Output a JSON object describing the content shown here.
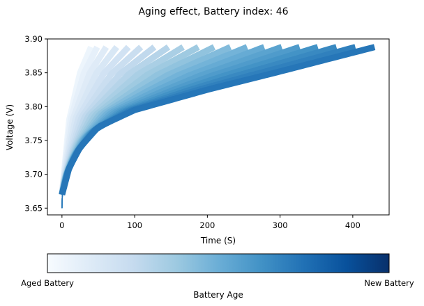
{
  "chart_data": {
    "type": "line",
    "title": "Aging effect, Battery index: 46",
    "xlabel": "Time (S)",
    "ylabel": "Voltage (V)",
    "xlim": [
      -20,
      450
    ],
    "ylim": [
      3.64,
      3.9
    ],
    "xticks": [
      0,
      100,
      200,
      300,
      400
    ],
    "yticks": [
      3.65,
      3.7,
      3.75,
      3.8,
      3.85,
      3.9
    ],
    "xtick_labels": [
      "0",
      "100",
      "200",
      "300",
      "400"
    ],
    "ytick_labels": [
      "3.65",
      "3.70",
      "3.75",
      "3.80",
      "3.85",
      "3.90"
    ],
    "grid": false,
    "curve_family": {
      "description_of_series": "Many charge-voltage curves colored by battery age",
      "start_voltage": 3.65,
      "cutoff_voltage": 3.89,
      "newest_curve": {
        "end_time": 430,
        "voltage_at_time": [
          [
            0,
            3.67
          ],
          [
            10,
            3.71
          ],
          [
            25,
            3.74
          ],
          [
            50,
            3.77
          ],
          [
            100,
            3.795
          ],
          [
            200,
            3.825
          ],
          [
            300,
            3.852
          ],
          [
            430,
            3.888
          ]
        ]
      },
      "oldest_curve": {
        "end_time": 40,
        "voltage_at_time": [
          [
            0,
            3.67
          ],
          [
            10,
            3.78
          ],
          [
            25,
            3.85
          ],
          [
            40,
            3.888
          ]
        ]
      },
      "curve_count": 20
    },
    "colorbar": {
      "label": "Battery Age",
      "left_label": "Aged Battery",
      "right_label": "New Battery",
      "colormap": [
        "#f7fbff",
        "#deebf7",
        "#c6dbef",
        "#9ecae1",
        "#6baed6",
        "#4292c6",
        "#2171b5",
        "#08519c",
        "#08306b"
      ]
    }
  }
}
